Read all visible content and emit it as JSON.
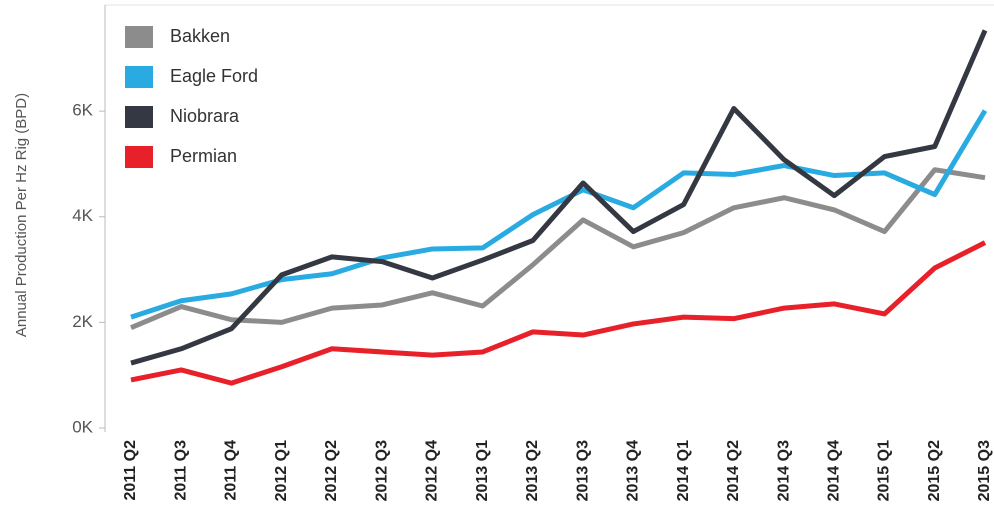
{
  "chart_data": {
    "type": "line",
    "y_label": "Annual Production Per Hz Rig (BPD)",
    "categories": [
      "2011 Q2",
      "2011 Q3",
      "2011 Q4",
      "2012 Q1",
      "2012 Q2",
      "2012 Q3",
      "2012 Q4",
      "2013 Q1",
      "2013 Q2",
      "2013 Q3",
      "2013 Q4",
      "2014 Q1",
      "2014 Q2",
      "2014 Q3",
      "2014 Q4",
      "2015 Q1",
      "2015 Q2",
      "2015 Q3"
    ],
    "series": [
      {
        "name": "Bakken",
        "color": "#8c8c8c",
        "values": [
          1900,
          2300,
          2050,
          2000,
          2270,
          2330,
          2560,
          2310,
          3090,
          3940,
          3430,
          3700,
          4170,
          4360,
          4130,
          3720,
          4890,
          4740
        ]
      },
      {
        "name": "Eagle Ford",
        "color": "#29abe2",
        "values": [
          2100,
          2410,
          2540,
          2810,
          2920,
          3220,
          3390,
          3410,
          4040,
          4510,
          4170,
          4830,
          4800,
          4970,
          4780,
          4830,
          4420,
          6010
        ]
      },
      {
        "name": "Niobrara",
        "color": "#333842",
        "values": [
          1230,
          1500,
          1880,
          2900,
          3240,
          3150,
          2840,
          3180,
          3550,
          4640,
          3720,
          4230,
          6050,
          5080,
          4400,
          5140,
          5330,
          7530
        ]
      },
      {
        "name": "Permian",
        "color": "#e8202a",
        "values": [
          910,
          1100,
          850,
          1160,
          1500,
          1440,
          1380,
          1440,
          1820,
          1760,
          1970,
          2100,
          2070,
          2270,
          2350,
          2160,
          3030,
          3510
        ]
      }
    ],
    "ylim": [
      0,
      8000
    ],
    "yticks": [
      {
        "value": 0,
        "label": "0K"
      },
      {
        "value": 2000,
        "label": "2K"
      },
      {
        "value": 4000,
        "label": "4K"
      },
      {
        "value": 6000,
        "label": "6K"
      }
    ],
    "legend": "upper left",
    "grid": false
  }
}
